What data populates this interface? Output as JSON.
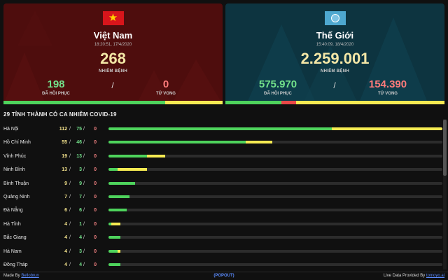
{
  "colors": {
    "vn_card_bg": "#4e0d0d",
    "world_card_bg": "#0d3440",
    "recovered": "#4ed35c",
    "active": "#f5ea52",
    "deaths": "#e94848",
    "link": "#5b8cff"
  },
  "vietnam": {
    "flag_icon": "vietnam-flag-icon",
    "title": "Việt Nam",
    "updated": "18:20:51, 17/4/2020",
    "cases": "268",
    "cases_label": "NHIỄM BỆNH",
    "recovered": "198",
    "recovered_label": "ĐÃ HỒI PHỤC",
    "separator": "/",
    "deaths": "0",
    "deaths_label": "TỬ VONG",
    "strip": {
      "recovered": 198,
      "active": 70,
      "deaths": 0
    }
  },
  "world": {
    "flag_icon": "united-nations-flag-icon",
    "title": "Thế Giới",
    "updated": "15:40:09, 18/4/2020",
    "cases": "2.259.001",
    "cases_label": "NHIỄM BỆNH",
    "recovered": "575.970",
    "recovered_label": "ĐÃ HỒI PHỤC",
    "separator": "/",
    "deaths": "154.390",
    "deaths_label": "TỬ VONG",
    "strip": {
      "recovered": 575970,
      "deaths": 154390,
      "active": 1528641
    }
  },
  "provinces": {
    "title": "29 TỈNH THÀNH CÓ CA NHIỄM COVID-19",
    "max_cases": 112,
    "rows": [
      {
        "name": "Hà Nội",
        "cases": "112",
        "recovered": "75",
        "deaths": "0"
      },
      {
        "name": "Hồ Chí Minh",
        "cases": "55",
        "recovered": "46",
        "deaths": "0"
      },
      {
        "name": "Vĩnh Phúc",
        "cases": "19",
        "recovered": "13",
        "deaths": "0"
      },
      {
        "name": "Ninh Bình",
        "cases": "13",
        "recovered": "3",
        "deaths": "0"
      },
      {
        "name": "Bình Thuận",
        "cases": "9",
        "recovered": "9",
        "deaths": "0"
      },
      {
        "name": "Quảng Ninh",
        "cases": "7",
        "recovered": "7",
        "deaths": "0"
      },
      {
        "name": "Đà Nẵng",
        "cases": "6",
        "recovered": "6",
        "deaths": "0"
      },
      {
        "name": "Hà Tĩnh",
        "cases": "4",
        "recovered": "1",
        "deaths": "0"
      },
      {
        "name": "Bắc Giang",
        "cases": "4",
        "recovered": "4",
        "deaths": "0"
      },
      {
        "name": "Hà Nam",
        "cases": "4",
        "recovered": "3",
        "deaths": "0"
      },
      {
        "name": "Đồng Tháp",
        "cases": "4",
        "recovered": "4",
        "deaths": "0"
      }
    ]
  },
  "footer": {
    "made_by_prefix": "Made By",
    "made_by_link": "Bellobrun",
    "popout": "(POPOUT)",
    "live_data_prefix": "Live Data Provided By",
    "live_data_link": "tomoyo.ai"
  }
}
